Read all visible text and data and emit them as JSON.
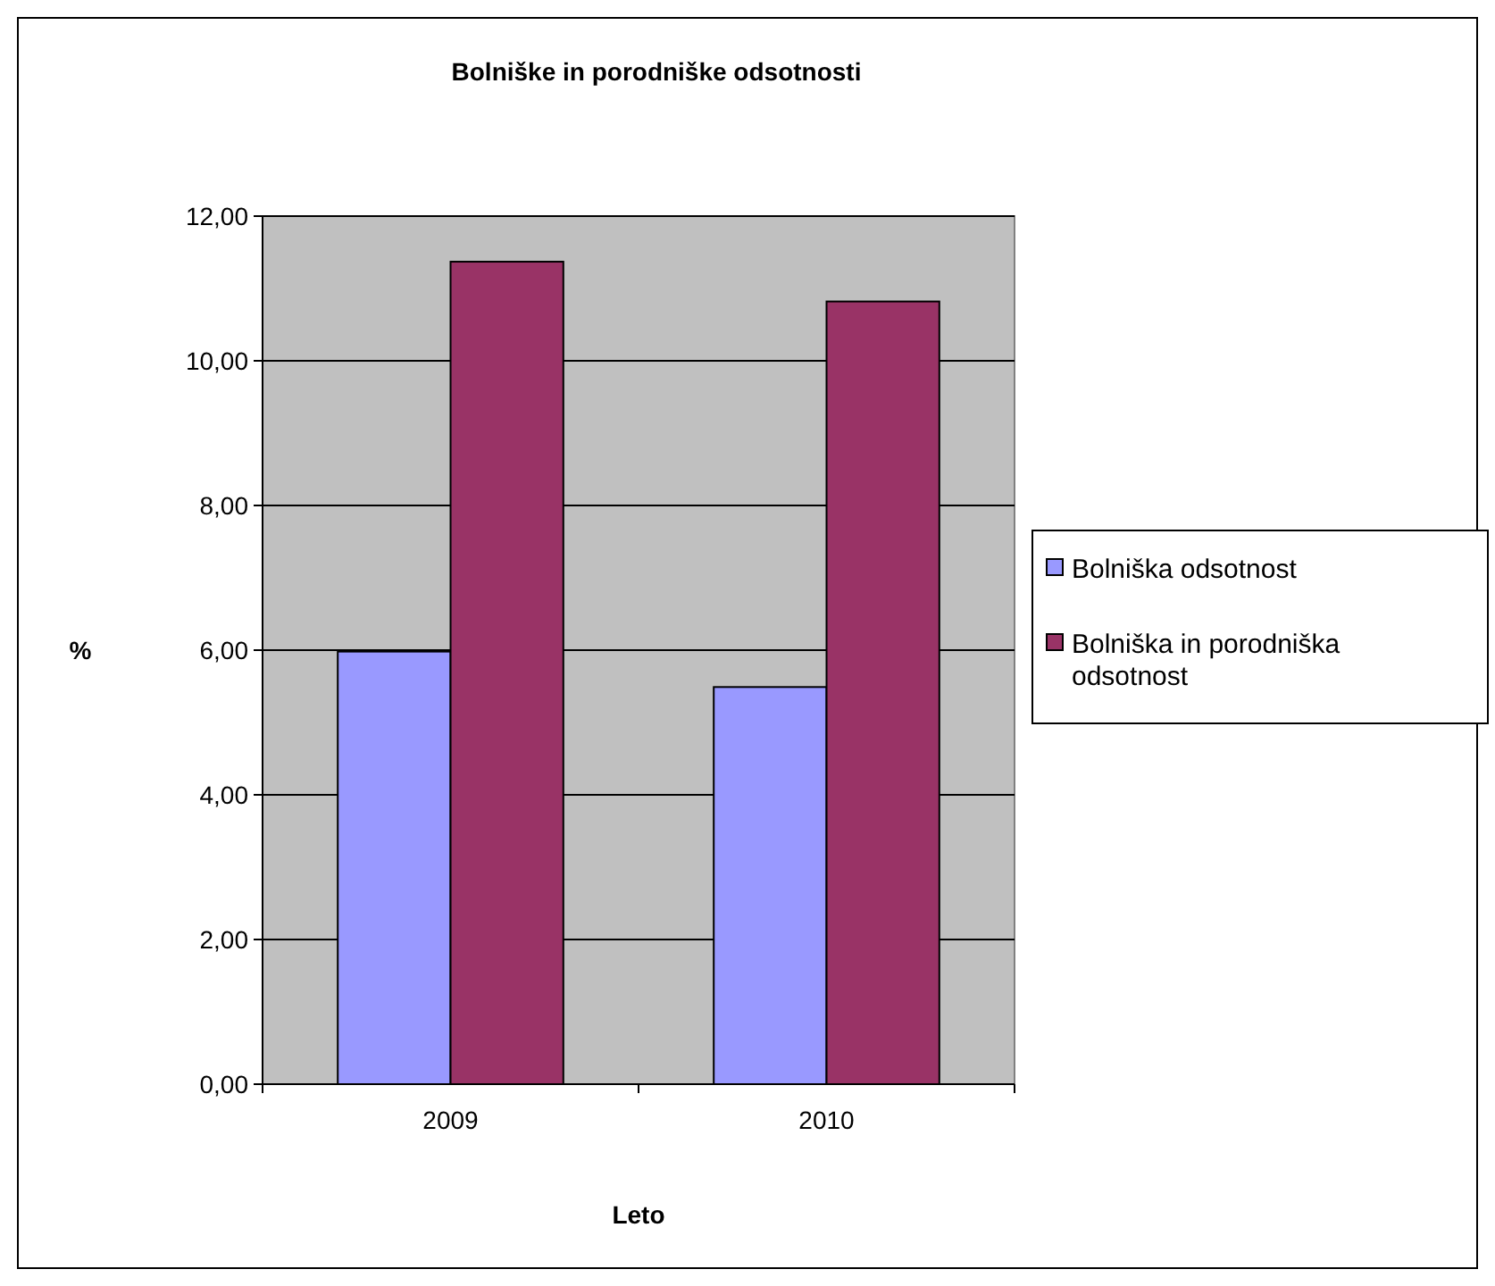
{
  "chart_data": {
    "type": "bar",
    "title": "Bolniške in porodniške odsotnosti",
    "xlabel": "Leto",
    "ylabel": "%",
    "categories": [
      "2009",
      "2010"
    ],
    "series": [
      {
        "name": "Bolniška odsotnost",
        "color": "#9999ff",
        "values": [
          5.98,
          5.49
        ]
      },
      {
        "name": "Bolniška in porodniška odsotnost",
        "color": "#993366",
        "values": [
          11.37,
          10.82
        ]
      }
    ],
    "ylim": [
      0,
      12
    ],
    "yticks": [
      {
        "value": 0,
        "label": "0,00"
      },
      {
        "value": 2,
        "label": "2,00"
      },
      {
        "value": 4,
        "label": "4,00"
      },
      {
        "value": 6,
        "label": "6,00"
      },
      {
        "value": 8,
        "label": "8,00"
      },
      {
        "value": 10,
        "label": "10,00"
      },
      {
        "value": 12,
        "label": "12,00"
      }
    ],
    "grid": "y",
    "legend": "right"
  }
}
